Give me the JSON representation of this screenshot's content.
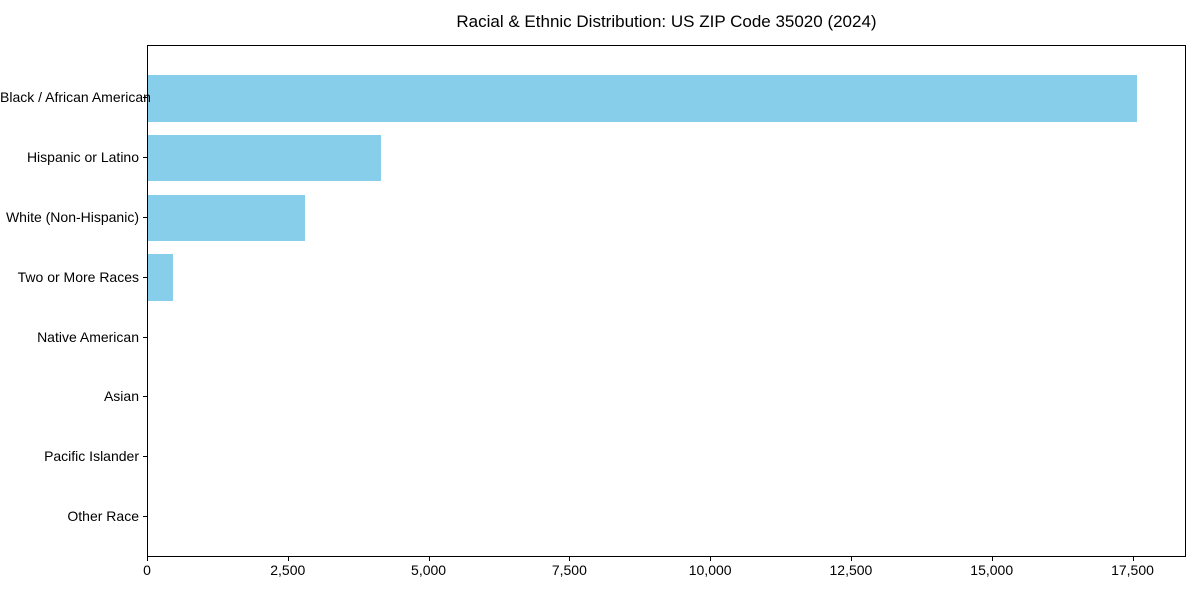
{
  "chart_data": {
    "type": "bar",
    "orientation": "horizontal",
    "title": "Racial & Ethnic Distribution: US ZIP Code 35020 (2024)",
    "categories": [
      "Black / African American",
      "Hispanic or Latino",
      "White (Non-Hispanic)",
      "Two or More Races",
      "Native American",
      "Asian",
      "Pacific Islander",
      "Other Race"
    ],
    "values": [
      17570,
      4130,
      2780,
      440,
      0,
      0,
      0,
      0
    ],
    "xlabel": "",
    "ylabel": "",
    "xlim": [
      0,
      18450
    ],
    "x_ticks": [
      0,
      2500,
      5000,
      7500,
      10000,
      12500,
      15000,
      17500
    ],
    "x_tick_labels": [
      "0",
      "2,500",
      "5,000",
      "7,500",
      "10,000",
      "12,500",
      "15,000",
      "17,500"
    ],
    "bar_color": "#87CEEB",
    "text_color": "#000000",
    "background": "#FFFFFF",
    "grid": false,
    "legend": null
  }
}
